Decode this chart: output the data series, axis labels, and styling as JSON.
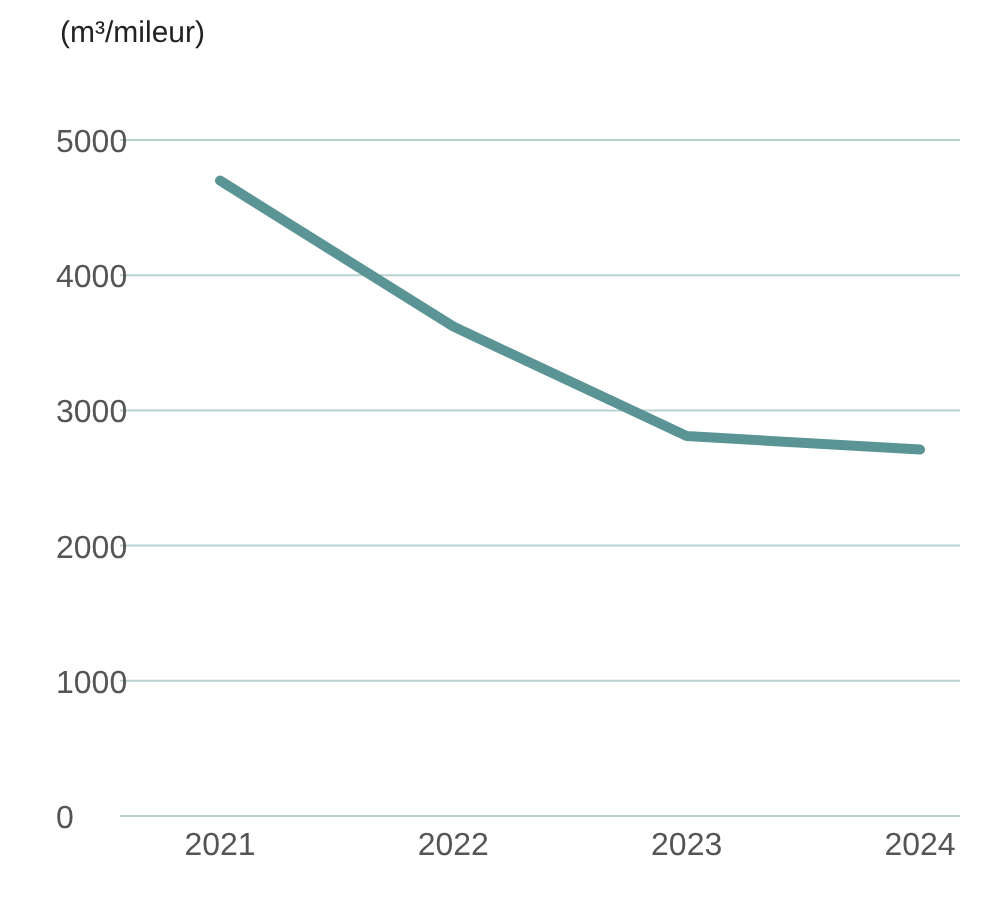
{
  "chart_data": {
    "type": "line",
    "ylabel": "(m³/mileur)",
    "categories": [
      "2021",
      "2022",
      "2023",
      "2024"
    ],
    "series": [
      {
        "color": "#5a9494",
        "values": [
          4700,
          3620,
          2810,
          2710
        ]
      }
    ],
    "ylim": [
      0,
      5000
    ],
    "yticks": [
      0,
      1000,
      2000,
      3000,
      4000,
      5000
    ],
    "grid": "y",
    "marker": "none",
    "line_style": "solid"
  }
}
